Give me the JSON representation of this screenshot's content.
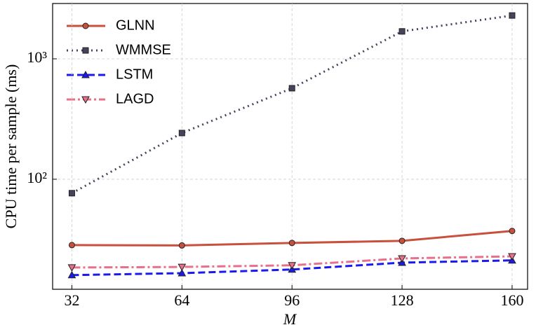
{
  "chart_data": {
    "type": "line",
    "x_label": "M",
    "y_label": "CPU time per sample (ms)",
    "x": [
      32,
      64,
      96,
      128,
      160
    ],
    "xlim": [
      26.4,
      164.5
    ],
    "xticks": [
      32,
      64,
      96,
      128,
      160
    ],
    "ylim": [
      12.2,
      2880
    ],
    "yticks": [
      {
        "value": 100,
        "label": "10²"
      },
      {
        "value": 1000,
        "label": "10³"
      }
    ],
    "log_y": true,
    "grid": true,
    "legend": "upper left",
    "series": [
      {
        "name": "GLNN",
        "color": "#c8503c",
        "linestyle": "solid",
        "marker": "circle",
        "values": [
          28.4,
          28.2,
          29.6,
          30.8,
          37.2
        ]
      },
      {
        "name": "WMMSE",
        "color": "#44445c",
        "linestyle": "dotted",
        "marker": "square",
        "values": [
          76.6,
          242,
          570,
          1690,
          2290
        ]
      },
      {
        "name": "LSTM",
        "color": "#1a1aee",
        "linestyle": "dashed",
        "marker": "triangle-up",
        "values": [
          16.0,
          16.6,
          17.8,
          20.3,
          21.2
        ]
      },
      {
        "name": "LAGD",
        "color": "#e8708a",
        "linestyle": "dashdot",
        "marker": "triangle-down",
        "values": [
          18.5,
          18.7,
          19.3,
          22.0,
          22.9
        ]
      }
    ]
  }
}
